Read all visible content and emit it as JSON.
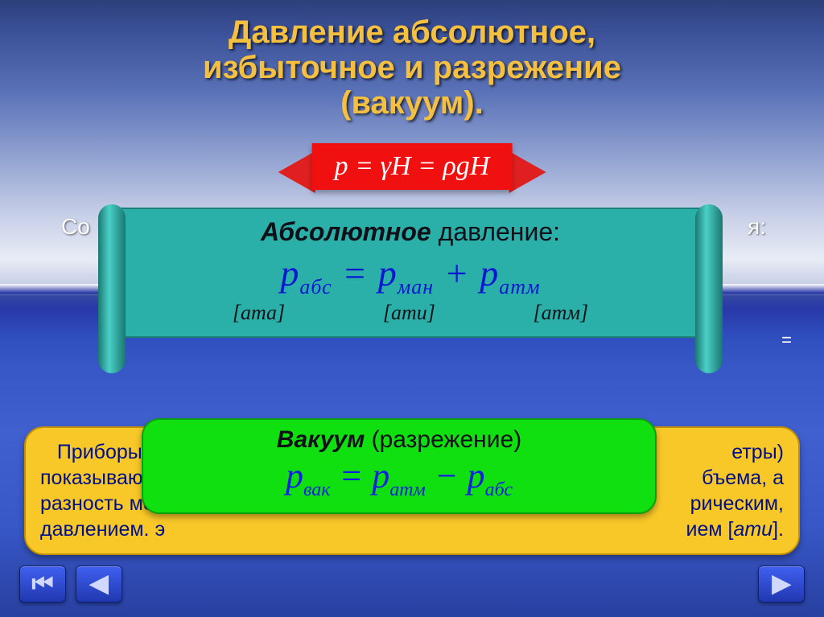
{
  "title_line1": "Давление абсолютное,",
  "title_line2": "избыточное и разрежение",
  "title_line3": "(вакуум).",
  "ribbon_formula": "p = γH = ρgH",
  "back_text_left": "Со",
  "back_text_right": "я:",
  "eq_sign": "=",
  "abs_panel": {
    "title_bold": "Абсолютное",
    "title_rest": " давление:",
    "formula": "p<sub>абс</sub> = p<sub>ман</sub> + p<sub>атм</sub>",
    "unit1": "[ата]",
    "unit2": "[ати]",
    "unit3": "[атм]"
  },
  "yellow_panel": {
    "l1a": "   Приборы",
    "l1b": "етры)",
    "l2a": "показываю",
    "l2b": "бъема, а",
    "l3a": "разность меж",
    "l3b": "рическим,",
    "l4a": "давлением. э",
    "l4b": "ием [",
    "l4c": "ати",
    "l4d": "]."
  },
  "green_panel": {
    "title_bold": "Вакуум",
    "title_rest": " (разрежение)",
    "formula": "p<sub>вак</sub> = p<sub>атм</sub> − p<sub>абс</sub>"
  },
  "colors": {
    "title": "#f5c040",
    "ribbon_bg": "#f01010",
    "scroll_bg": "#2ab0a8",
    "yellow_bg": "#f8c828",
    "green_bg": "#10e010",
    "formula_blue": "#0818d0",
    "nav_bg": "#2038b0"
  }
}
